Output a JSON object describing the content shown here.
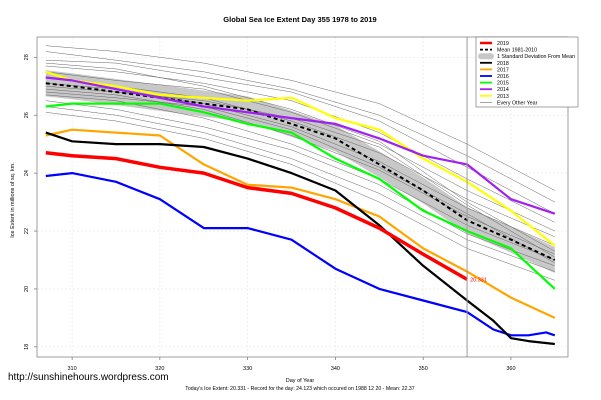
{
  "chart_data": {
    "type": "line",
    "title": "Global Sea Ice Extent Day 355 1978 to 2019",
    "xlabel": "Day of Year",
    "ylabel": "Ice Extent in millions of sq. km.",
    "footer": "Today's Ice Extent: 20.331  - Record for the day: 24.123 which occured on 1988 12 20  - Mean: 22.37",
    "xlim": [
      306,
      366.5
    ],
    "ylim": [
      17.65,
      28.7
    ],
    "xticks": [
      "310",
      "320",
      "330",
      "340",
      "350",
      "360"
    ],
    "yticks": [
      "18",
      "20",
      "22",
      "24",
      "26",
      "28"
    ],
    "grid": true,
    "legend_position": "top-right",
    "current_day": 355,
    "current_value_label": "20.331",
    "legend": [
      {
        "label": "2019",
        "color": "#ff0000",
        "style": "thick"
      },
      {
        "label": "Mean 1981-2010",
        "color": "#000000",
        "style": "dashed"
      },
      {
        "label": "1 Standard Deviation From Mean",
        "color": "#c8c8c8",
        "style": "band"
      },
      {
        "label": "2018",
        "color": "#000000",
        "style": "solid"
      },
      {
        "label": "2017",
        "color": "#ffa500",
        "style": "solid"
      },
      {
        "label": "2016",
        "color": "#0000ff",
        "style": "solid"
      },
      {
        "label": "2015",
        "color": "#00ff00",
        "style": "solid"
      },
      {
        "label": "2014",
        "color": "#a020f0",
        "style": "solid"
      },
      {
        "label": "2013",
        "color": "#ffff00",
        "style": "solid"
      },
      {
        "label": "Every Other Year",
        "color": "#808080",
        "style": "thin"
      }
    ],
    "mean": {
      "x": [
        307,
        310,
        320,
        330,
        340,
        350,
        355,
        360,
        365
      ],
      "y": [
        27.1,
        27.0,
        26.6,
        26.2,
        25.2,
        23.4,
        22.37,
        21.7,
        21.0
      ],
      "sd": 0.45
    },
    "series": [
      {
        "name": "2013",
        "color": "#ffff00",
        "x": [
          307,
          310,
          315,
          320,
          325,
          330,
          335,
          340,
          345,
          350,
          355,
          360,
          365
        ],
        "y": [
          27.5,
          27.2,
          27.0,
          26.7,
          26.6,
          26.5,
          26.6,
          25.9,
          25.5,
          24.5,
          23.7,
          22.7,
          21.5
        ]
      },
      {
        "name": "2014",
        "color": "#a020f0",
        "x": [
          307,
          310,
          315,
          320,
          325,
          330,
          335,
          340,
          345,
          350,
          355,
          360,
          365
        ],
        "y": [
          27.3,
          27.2,
          26.9,
          26.6,
          26.3,
          26.1,
          25.9,
          25.7,
          25.2,
          24.6,
          24.3,
          23.1,
          22.6
        ]
      },
      {
        "name": "2015",
        "color": "#00ff00",
        "x": [
          307,
          310,
          315,
          320,
          325,
          330,
          335,
          340,
          345,
          350,
          355,
          360,
          365
        ],
        "y": [
          26.3,
          26.4,
          26.4,
          26.4,
          26.1,
          25.7,
          25.4,
          24.5,
          23.8,
          22.7,
          22.0,
          21.4,
          20.0
        ]
      },
      {
        "name": "2016",
        "color": "#0000ff",
        "x": [
          307,
          310,
          315,
          320,
          325,
          330,
          335,
          340,
          345,
          350,
          355,
          358,
          360,
          362,
          364,
          365
        ],
        "y": [
          23.9,
          24.0,
          23.7,
          23.1,
          22.1,
          22.1,
          21.7,
          20.7,
          20.0,
          19.6,
          19.2,
          18.6,
          18.4,
          18.4,
          18.5,
          18.4
        ]
      },
      {
        "name": "2017",
        "color": "#ffa500",
        "x": [
          307,
          310,
          315,
          320,
          325,
          330,
          335,
          340,
          345,
          350,
          355,
          360,
          365
        ],
        "y": [
          25.3,
          25.5,
          25.4,
          25.3,
          24.3,
          23.6,
          23.5,
          23.1,
          22.5,
          21.4,
          20.6,
          19.7,
          19.0
        ]
      },
      {
        "name": "2018",
        "color": "#000000",
        "x": [
          307,
          310,
          315,
          320,
          325,
          330,
          335,
          340,
          345,
          350,
          355,
          358,
          360,
          362,
          365
        ],
        "y": [
          25.4,
          25.1,
          25.0,
          25.0,
          24.9,
          24.5,
          24.0,
          23.4,
          22.2,
          20.8,
          19.6,
          18.9,
          18.3,
          18.2,
          18.1
        ]
      },
      {
        "name": "2019",
        "color": "#ff0000",
        "x": [
          307,
          310,
          315,
          320,
          325,
          330,
          335,
          340,
          345,
          350,
          355
        ],
        "y": [
          24.7,
          24.6,
          24.5,
          24.2,
          24.0,
          23.5,
          23.3,
          22.8,
          22.1,
          21.2,
          20.331
        ]
      }
    ],
    "other_years": {
      "x": [
        307,
        315,
        325,
        335,
        345,
        355,
        365
      ],
      "y": [
        [
          28.4,
          28.2,
          27.8,
          27.2,
          26.4,
          25.0,
          23.4
        ],
        [
          28.2,
          27.9,
          27.5,
          26.9,
          26.0,
          24.6,
          23.0
        ],
        [
          27.9,
          27.8,
          27.3,
          26.8,
          25.8,
          24.2,
          22.6
        ],
        [
          27.7,
          27.5,
          27.1,
          26.5,
          25.4,
          23.8,
          22.3
        ],
        [
          27.5,
          27.2,
          26.9,
          26.1,
          25.0,
          23.4,
          22.0
        ],
        [
          27.3,
          27.0,
          26.6,
          25.8,
          24.7,
          23.1,
          21.8
        ],
        [
          27.1,
          26.9,
          26.4,
          25.6,
          24.4,
          22.8,
          21.5
        ],
        [
          26.9,
          26.7,
          26.2,
          25.3,
          24.1,
          22.5,
          21.2
        ],
        [
          26.7,
          26.5,
          25.9,
          25.0,
          23.8,
          22.2,
          21.0
        ],
        [
          26.5,
          26.2,
          25.6,
          24.8,
          23.6,
          21.9,
          20.8
        ],
        [
          26.3,
          26.0,
          25.4,
          24.5,
          23.3,
          21.7,
          20.6
        ],
        [
          26.1,
          25.8,
          25.2,
          24.3,
          23.0,
          21.4,
          20.3
        ],
        [
          27.8,
          27.6,
          27.0,
          26.2,
          25.1,
          23.0,
          21.3
        ],
        [
          27.0,
          26.8,
          26.5,
          25.9,
          24.9,
          22.9,
          21.1
        ],
        [
          26.8,
          26.6,
          26.3,
          25.5,
          24.2,
          22.6,
          20.9
        ]
      ]
    }
  },
  "watermark": "http://sunshinehours.wordpress.com"
}
